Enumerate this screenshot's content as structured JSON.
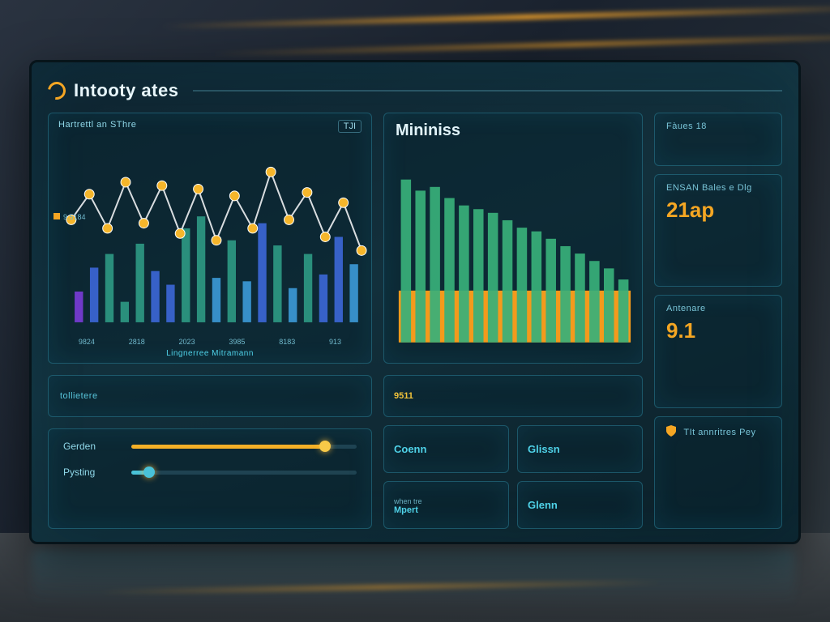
{
  "header": {
    "title": "Intooty ates",
    "logo_color": "#f5a623"
  },
  "left_chart": {
    "title": "Hartrettl an SThre",
    "corner_tag": "TJI",
    "caption": "Lingnerree Mitramann",
    "type": "combo-bar-line",
    "background": "#0d2834",
    "y_max": 100,
    "line": {
      "stroke": "#d9dde0",
      "stroke_width": 2,
      "marker_fill": "#f6b62b",
      "marker_stroke": "#ffffff",
      "marker_radius": 6,
      "points": [
        60,
        75,
        55,
        82,
        58,
        80,
        52,
        78,
        48,
        74,
        55,
        88,
        60,
        76,
        50,
        70,
        42
      ]
    },
    "bars": {
      "width": 0.55,
      "heights": [
        18,
        32,
        40,
        12,
        46,
        30,
        22,
        55,
        62,
        26,
        48,
        24,
        58,
        45,
        20,
        40,
        28,
        50,
        34
      ],
      "colors": [
        "#7a3cd8",
        "#3c67d8",
        "#2e9a84",
        "#2e9a84",
        "#2e9a84",
        "#3c67d8",
        "#3c67d8",
        "#2e9a84",
        "#2e9a84",
        "#3c9ad8",
        "#2e9a84",
        "#3c9ad8",
        "#3c67d8",
        "#2e9a84",
        "#3c9ad8",
        "#2e9a84",
        "#3c67d8",
        "#3c67d8",
        "#3c9ad8"
      ]
    },
    "x_labels": [
      "9824",
      "2818",
      "2023",
      "3985",
      "8183",
      "913"
    ],
    "legend": {
      "color": "#f5a623",
      "label": "9.5184"
    }
  },
  "center_chart": {
    "title": "Mininiss",
    "type": "bar",
    "background": "#0d2834",
    "y_max": 100,
    "base_bar": {
      "height": 28,
      "color": "#f39a1c"
    },
    "bars": {
      "count": 16,
      "color": "#38b07a",
      "heights": [
        88,
        82,
        84,
        78,
        74,
        72,
        70,
        66,
        62,
        60,
        56,
        52,
        48,
        44,
        40,
        34
      ]
    }
  },
  "right_panel": {
    "items": [
      {
        "label": "Fàues 18",
        "value": "",
        "sub": "",
        "value_color": "#9dd9e8"
      },
      {
        "label": "ENSAN Bales e Dlg",
        "value": "21ap",
        "sub": "",
        "value_color": "#f5a623"
      },
      {
        "label": "Antenare",
        "value": "9.1",
        "sub": "",
        "value_color": "#f5a623"
      },
      {
        "label": "TIt annritres Pey",
        "value": "",
        "sub": "",
        "value_color": "#9dd9e8",
        "icon": "shield"
      }
    ]
  },
  "divider": {
    "label": "tollietere"
  },
  "tiles": [
    {
      "label": "Coenn",
      "sub": ""
    },
    {
      "label": "Glissn",
      "sub": ""
    },
    {
      "label": "when tre",
      "sub": "Mpert"
    },
    {
      "label": "Glenn",
      "sub": ""
    }
  ],
  "tile_badge": {
    "value": "9511",
    "color": "#f0c23a"
  },
  "sliders": [
    {
      "label": "Gerden",
      "percent": 86,
      "fill_color": "#f5b027",
      "knob_color": "#f7c948"
    },
    {
      "label": "Pysting",
      "percent": 8,
      "fill_color": "#49c2d8",
      "knob_color": "#49c2d8"
    }
  ],
  "colors": {
    "panel_border": "rgba(60,180,215,.35)",
    "text_primary": "#e8f6fb",
    "text_secondary": "#8fd7e8",
    "accent_cyan": "#4fd2e8",
    "accent_orange": "#f5a623"
  }
}
